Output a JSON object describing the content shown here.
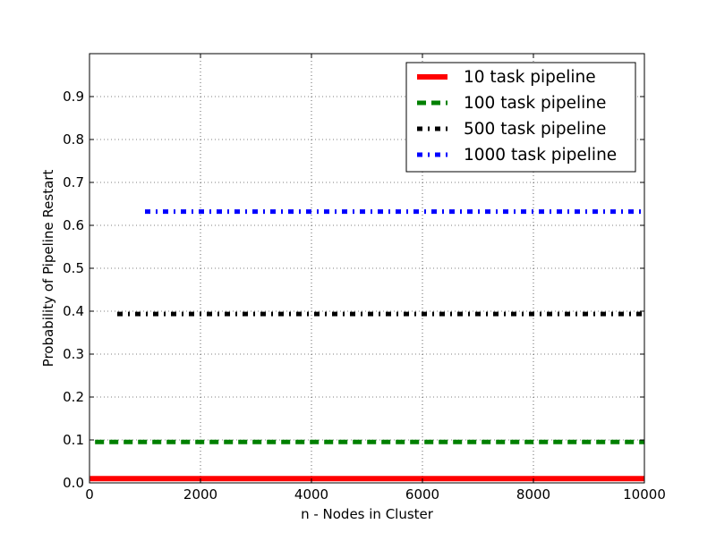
{
  "chart_data": {
    "type": "line",
    "title": "",
    "xlabel": "n - Nodes in Cluster",
    "ylabel": "Probability of Pipeline Restart",
    "xlim": [
      0,
      10000
    ],
    "ylim": [
      0,
      1.0
    ],
    "x_ticks": [
      0,
      2000,
      4000,
      6000,
      8000,
      10000
    ],
    "y_ticks": [
      0.0,
      0.1,
      0.2,
      0.3,
      0.4,
      0.5,
      0.6,
      0.7,
      0.8,
      0.9
    ],
    "x_tick_labels": [
      "0",
      "2000",
      "4000",
      "6000",
      "8000",
      "10000"
    ],
    "y_tick_labels": [
      "0.0",
      "0.1",
      "0.2",
      "0.3",
      "0.4",
      "0.5",
      "0.6",
      "0.7",
      "0.8",
      "0.9"
    ],
    "grid": true,
    "legend_position": "top-right",
    "series": [
      {
        "name": "10 task pipeline",
        "color": "#ff0000",
        "style": "solid",
        "x": [
          10,
          10000
        ],
        "y": [
          0.00995,
          0.00995
        ]
      },
      {
        "name": "100 task pipeline",
        "color": "#008000",
        "style": "dashed",
        "x": [
          100,
          10000
        ],
        "y": [
          0.0952,
          0.0952
        ]
      },
      {
        "name": "500 task pipeline",
        "color": "#000000",
        "style": "dashdot",
        "x": [
          500,
          10000
        ],
        "y": [
          0.3935,
          0.3935
        ]
      },
      {
        "name": "1000 task pipeline",
        "color": "#0000ff",
        "style": "dashdot",
        "x": [
          1000,
          10000
        ],
        "y": [
          0.632,
          0.632
        ]
      }
    ]
  }
}
